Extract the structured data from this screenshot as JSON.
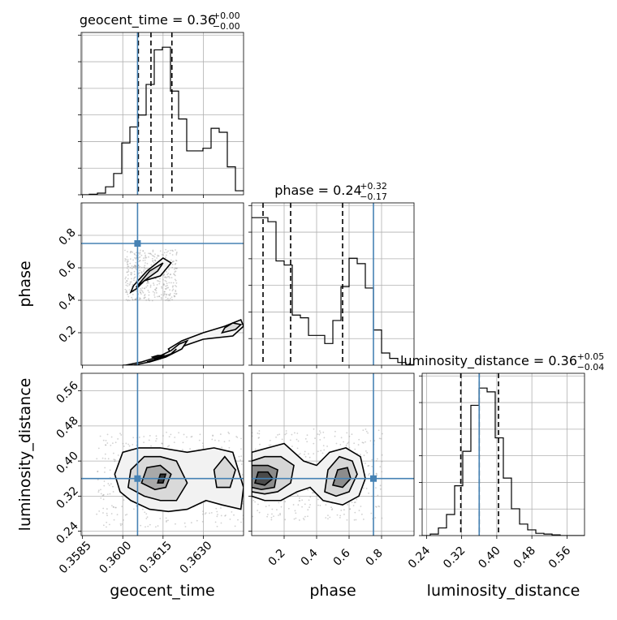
{
  "chart_data": {
    "type": "corner",
    "parameters": [
      "geocent_time",
      "phase",
      "luminosity_distance"
    ],
    "truth": {
      "geocent_time": 0.36055,
      "phase": 0.75,
      "luminosity_distance": 0.36
    },
    "titles": [
      {
        "parameter": "geocent_time",
        "label": "geocent_time = 0.36",
        "plus": "+0.00",
        "minus": "−0.00"
      },
      {
        "parameter": "phase",
        "label": "phase = 0.24",
        "plus": "+0.32",
        "minus": "−0.17"
      },
      {
        "parameter": "luminosity_distance",
        "label": "luminosity_distance = 0.36",
        "plus": "+0.05",
        "minus": "−0.04"
      }
    ],
    "axes": {
      "geocent_time": {
        "xlabel": "geocent_time",
        "range": [
          0.35845,
          0.3645
        ],
        "ticks": [
          "0.3585",
          "0.3600",
          "0.3615",
          "0.3630"
        ],
        "tick_values": [
          0.3585,
          0.36,
          0.3615,
          0.363
        ]
      },
      "phase": {
        "xlabel": "phase",
        "ylabel": "phase",
        "range": [
          0.0,
          1.0
        ],
        "ticks": [
          "0.2",
          "0.4",
          "0.6",
          "0.8"
        ],
        "tick_values": [
          0.2,
          0.4,
          0.6,
          0.8
        ]
      },
      "luminosity_distance": {
        "xlabel": "luminosity_distance",
        "ylabel": "luminosity_distance",
        "range": [
          0.23,
          0.6
        ],
        "ticks": [
          "0.24",
          "0.32",
          "0.40",
          "0.48",
          "0.56"
        ],
        "tick_values": [
          0.24,
          0.32,
          0.4,
          0.48,
          0.56
        ]
      }
    },
    "histograms": {
      "geocent_time": {
        "bin_edges": [
          0.35845,
          0.358752,
          0.359055,
          0.359357,
          0.35966,
          0.359962,
          0.360265,
          0.360567,
          0.36087,
          0.361172,
          0.361475,
          0.361777,
          0.36208,
          0.362382,
          0.362685,
          0.362987,
          0.36329,
          0.363592,
          0.363895,
          0.364197,
          0.3645
        ],
        "counts": [
          0.0,
          0.2,
          0.6,
          3.0,
          8.0,
          19.5,
          25.5,
          30.0,
          41.5,
          54.5,
          55.5,
          39.0,
          28.5,
          16.5,
          16.5,
          17.5,
          25.0,
          23.5,
          10.5,
          1.5
        ],
        "quantiles": [
          0.36058,
          0.36105,
          0.36183
        ]
      },
      "phase": {
        "bin_edges": [
          0.0,
          0.05,
          0.1,
          0.15,
          0.2,
          0.25,
          0.3,
          0.35,
          0.4,
          0.45,
          0.5,
          0.55,
          0.6,
          0.65,
          0.7,
          0.75,
          0.8,
          0.85,
          0.9,
          0.95,
          1.0
        ],
        "counts": [
          54.5,
          54.5,
          53.0,
          38.5,
          37.0,
          18.5,
          17.5,
          11.0,
          11.0,
          8.0,
          16.5,
          29.0,
          39.5,
          37.5,
          28.5,
          13.0,
          4.5,
          2.5,
          1.0,
          0.2
        ],
        "quantiles": [
          0.07,
          0.24,
          0.56
        ]
      },
      "luminosity_distance": {
        "bin_edges": [
          0.23,
          0.2485,
          0.267,
          0.2855,
          0.304,
          0.3225,
          0.341,
          0.3595,
          0.378,
          0.3965,
          0.415,
          0.4335,
          0.452,
          0.4705,
          0.489,
          0.5075,
          0.526,
          0.5445,
          0.563,
          0.5815,
          0.6
        ],
        "counts": [
          0.0,
          0.4,
          2.0,
          5.5,
          13.0,
          22.0,
          34.0,
          38.5,
          37.5,
          25.5,
          15.0,
          7.0,
          3.0,
          1.5,
          0.6,
          0.4,
          0.2,
          0.0,
          0.0,
          0.0
        ],
        "quantiles": [
          0.318,
          0.36,
          0.404
        ]
      }
    },
    "contours": [
      {
        "x": "geocent_time",
        "y": "phase",
        "levels": [
          {
            "fill": "#f4f4f4",
            "x": [
              0.3604,
              0.3609,
              0.3615,
              0.3618,
              0.3614,
              0.3608,
              0.3605,
              0.3603
            ],
            "y": [
              0.49,
              0.58,
              0.66,
              0.63,
              0.55,
              0.52,
              0.47,
              0.45
            ]
          },
          {
            "fill": "#dcdcdc",
            "x": [
              0.3606,
              0.361,
              0.3615,
              0.3613,
              0.3608,
              0.3605
            ],
            "y": [
              0.5,
              0.58,
              0.63,
              0.58,
              0.52,
              0.48
            ]
          },
          {
            "fill": "#f4f4f4",
            "x": [
              0.3618,
              0.3623,
              0.363,
              0.3641,
              0.3645,
              0.3644,
              0.3638,
              0.363,
              0.3622,
              0.3617
            ],
            "y": [
              0.07,
              0.12,
              0.16,
              0.18,
              0.24,
              0.28,
              0.24,
              0.2,
              0.15,
              0.1
            ]
          },
          {
            "fill": "#dcdcdc",
            "x": [
              0.3637,
              0.3642,
              0.3644,
              0.3641,
              0.3638
            ],
            "y": [
              0.2,
              0.22,
              0.25,
              0.26,
              0.23
            ]
          },
          {
            "fill": "#f4f4f4",
            "x": [
              0.3601,
              0.3607,
              0.3613,
              0.3618,
              0.3621,
              0.3624,
              0.3622,
              0.3616,
              0.361,
              0.3604,
              0.36
            ],
            "y": [
              0.0,
              0.02,
              0.05,
              0.09,
              0.13,
              0.15,
              0.1,
              0.05,
              0.02,
              0.0,
              0.0
            ]
          },
          {
            "fill": "#dcdcdc",
            "x": [
              0.3609,
              0.3613,
              0.3618,
              0.362,
              0.3618,
              0.3614,
              0.361
            ],
            "y": [
              0.02,
              0.04,
              0.07,
              0.1,
              0.07,
              0.04,
              0.02
            ]
          },
          {
            "fill": "#111111",
            "x": [
              0.3612,
              0.3614,
              0.3615,
              0.3613,
              0.3611
            ],
            "y": [
              0.04,
              0.05,
              0.06,
              0.06,
              0.05
            ]
          }
        ]
      },
      {
        "x": "geocent_time",
        "y": "luminosity_distance",
        "levels": [
          {
            "fill": "#f2f2f2",
            "x": [
              0.3599,
              0.3603,
              0.361,
              0.3617,
              0.3624,
              0.3631,
              0.3637,
              0.3644,
              0.3645,
              0.3641,
              0.3634,
              0.3624,
              0.3614,
              0.3606,
              0.36,
              0.3597
            ],
            "y": [
              0.33,
              0.31,
              0.29,
              0.285,
              0.29,
              0.31,
              0.3,
              0.29,
              0.34,
              0.42,
              0.43,
              0.42,
              0.43,
              0.43,
              0.42,
              0.37
            ]
          },
          {
            "fill": "#d9d9d9",
            "x": [
              0.3602,
              0.3608,
              0.3614,
              0.362,
              0.3624,
              0.362,
              0.3614,
              0.3608,
              0.3603
            ],
            "y": [
              0.34,
              0.32,
              0.31,
              0.31,
              0.35,
              0.4,
              0.41,
              0.41,
              0.38
            ]
          },
          {
            "fill": "#d9d9d9",
            "x": [
              0.3635,
              0.364,
              0.3642,
              0.3638,
              0.3634
            ],
            "y": [
              0.34,
              0.34,
              0.38,
              0.41,
              0.38
            ]
          },
          {
            "fill": "#a9a9a9",
            "x": [
              0.3607,
              0.3612,
              0.3616,
              0.3618,
              0.3614,
              0.3609
            ],
            "y": [
              0.35,
              0.335,
              0.34,
              0.37,
              0.39,
              0.385
            ]
          },
          {
            "fill": "#333333",
            "x": [
              0.3613,
              0.3615,
              0.3616,
              0.3614
            ],
            "y": [
              0.35,
              0.35,
              0.37,
              0.37
            ]
          }
        ]
      },
      {
        "x": "phase",
        "y": "luminosity_distance",
        "levels": [
          {
            "fill": "#f2f2f2",
            "x": [
              0.0,
              0.08,
              0.18,
              0.28,
              0.36,
              0.44,
              0.56,
              0.66,
              0.7,
              0.67,
              0.58,
              0.48,
              0.4,
              0.32,
              0.2,
              0.1,
              0.0
            ],
            "y": [
              0.32,
              0.31,
              0.31,
              0.33,
              0.34,
              0.31,
              0.3,
              0.32,
              0.36,
              0.41,
              0.43,
              0.42,
              0.39,
              0.4,
              0.44,
              0.43,
              0.42
            ]
          },
          {
            "fill": "#d6d6d6",
            "x": [
              0.0,
              0.08,
              0.16,
              0.24,
              0.26,
              0.18,
              0.08,
              0.0
            ],
            "y": [
              0.33,
              0.325,
              0.33,
              0.35,
              0.39,
              0.41,
              0.41,
              0.4
            ]
          },
          {
            "fill": "#d6d6d6",
            "x": [
              0.45,
              0.52,
              0.6,
              0.65,
              0.62,
              0.54,
              0.47
            ],
            "y": [
              0.33,
              0.32,
              0.33,
              0.37,
              0.4,
              0.41,
              0.38
            ]
          },
          {
            "fill": "#8c8c8c",
            "x": [
              0.0,
              0.06,
              0.14,
              0.16,
              0.1,
              0.0
            ],
            "y": [
              0.34,
              0.335,
              0.34,
              0.38,
              0.39,
              0.39
            ]
          },
          {
            "fill": "#8c8c8c",
            "x": [
              0.5,
              0.56,
              0.61,
              0.59,
              0.53
            ],
            "y": [
              0.345,
              0.34,
              0.36,
              0.385,
              0.38
            ]
          },
          {
            "fill": "#4a4a4a",
            "x": [
              0.02,
              0.08,
              0.13,
              0.1,
              0.04
            ],
            "y": [
              0.35,
              0.345,
              0.36,
              0.375,
              0.375
            ]
          }
        ]
      }
    ]
  }
}
